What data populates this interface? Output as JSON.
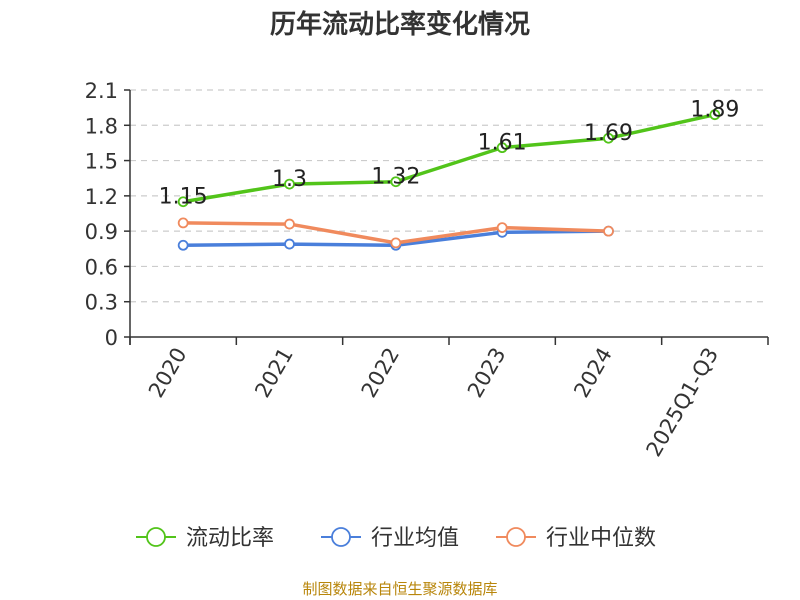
{
  "colors": {
    "current_ratio": "#52c41a",
    "industry_avg": "#4a7fdb",
    "industry_median": "#f08a5d",
    "grid": "#cccccc",
    "axis": "#333333",
    "source": "#b8860b"
  },
  "source_note": "制图数据来自恒生聚源数据库",
  "chart_data": {
    "type": "line",
    "title": "历年流动比率变化情况",
    "categories": [
      "2020",
      "2021",
      "2022",
      "2023",
      "2024",
      "2025Q1-Q3"
    ],
    "ylim": [
      0,
      2.1
    ],
    "yticks": [
      "0",
      "0.3",
      "0.6",
      "0.9",
      "1.2",
      "1.5",
      "1.8",
      "2.1"
    ],
    "grid": true,
    "legend_position": "bottom",
    "series": [
      {
        "name": "流动比率",
        "color_key": "current_ratio",
        "values": [
          1.15,
          1.3,
          1.32,
          1.61,
          1.69,
          1.89
        ],
        "labels": [
          "1.15",
          "1.3",
          "1.32",
          "1.61",
          "1.69",
          "1.89"
        ]
      },
      {
        "name": "行业均值",
        "color_key": "industry_avg",
        "values": [
          0.78,
          0.79,
          0.78,
          0.89,
          0.9,
          null
        ]
      },
      {
        "name": "行业中位数",
        "color_key": "industry_median",
        "values": [
          0.97,
          0.96,
          0.8,
          0.93,
          0.9,
          null
        ]
      }
    ]
  }
}
